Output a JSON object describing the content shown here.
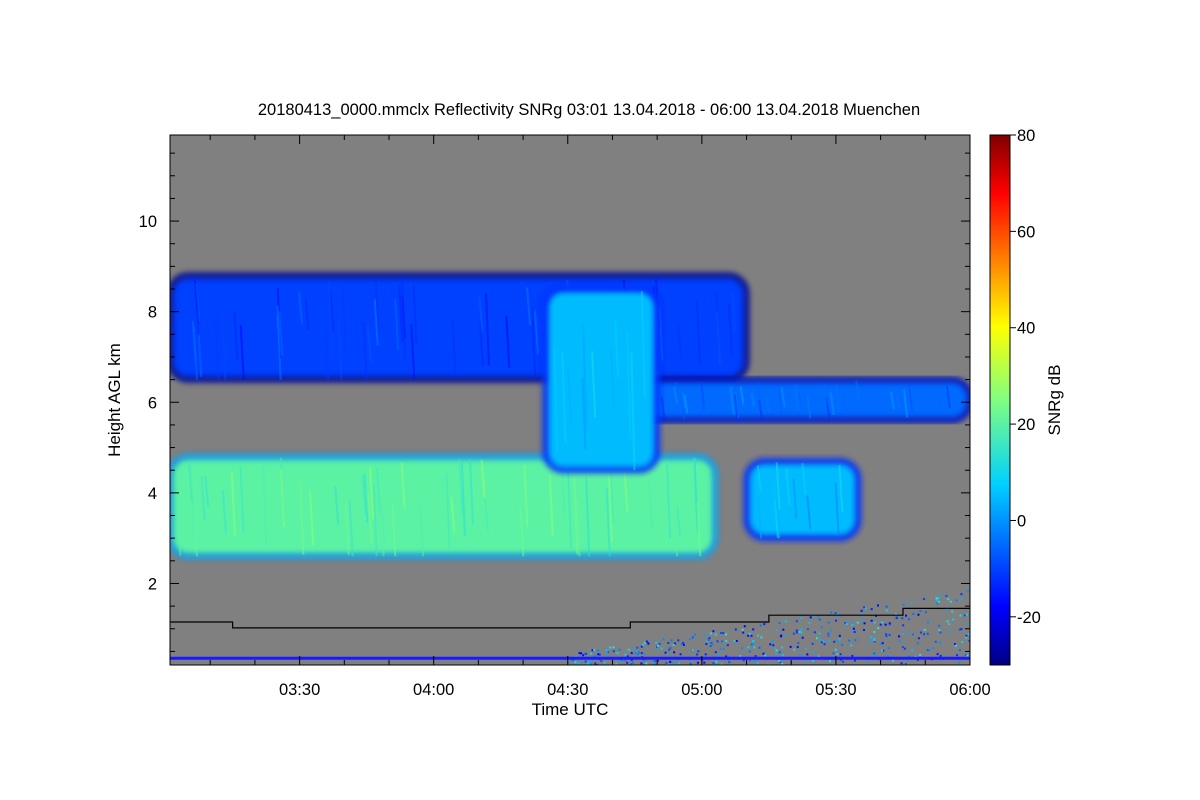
{
  "chart_data": {
    "type": "heatmap",
    "title": "20180413_0000.mmclx Reflectivity SNRg   03:01 13.04.2018 - 06:00 13.04.2018 Muenchen",
    "xlabel": "Time UTC",
    "ylabel": "Height AGL km",
    "colorbar_label": "SNRg dB",
    "xlim": [
      "03:01",
      "06:00"
    ],
    "ylim": [
      0.2,
      11.9
    ],
    "x_ticks": [
      "03:30",
      "04:00",
      "04:30",
      "05:00",
      "05:30",
      "06:00"
    ],
    "x_tick_minutes": [
      210,
      240,
      270,
      300,
      330,
      360
    ],
    "y_ticks": [
      2,
      4,
      6,
      8,
      10
    ],
    "colorbar_range": [
      -30,
      80
    ],
    "colorbar_ticks": [
      -20,
      0,
      20,
      40,
      60,
      80
    ],
    "colormap": "jet",
    "background_color": "#808080",
    "features": [
      {
        "name": "upper cloud layer",
        "time_start": "03:01",
        "time_end": "05:10",
        "height_bottom_km": 6.5,
        "height_top_km": 8.8,
        "snr_db_typical": -10
      },
      {
        "name": "upper cloud extension",
        "time_start": "04:40",
        "time_end": "06:00",
        "height_bottom_km": 5.6,
        "height_top_km": 6.5,
        "snr_db_typical": -5
      },
      {
        "name": "lower cloud layer",
        "time_start": "03:01",
        "time_end": "05:03",
        "height_bottom_km": 2.6,
        "height_top_km": 4.8,
        "snr_db_typical": 20
      },
      {
        "name": "fall streak",
        "time_start": "04:25",
        "time_end": "04:50",
        "height_bottom_km": 4.5,
        "height_top_km": 8.5,
        "snr_db_typical": 5
      },
      {
        "name": "isolated cell",
        "time_start": "05:10",
        "time_end": "05:35",
        "height_bottom_km": 3.0,
        "height_top_km": 4.7,
        "snr_db_typical": 5
      }
    ],
    "step_line": {
      "color": "#000000",
      "points": [
        {
          "time": "03:01",
          "height_km": 1.15
        },
        {
          "time": "03:15",
          "height_km": 1.15
        },
        {
          "time": "03:15",
          "height_km": 1.02
        },
        {
          "time": "04:44",
          "height_km": 1.02
        },
        {
          "time": "04:44",
          "height_km": 1.15
        },
        {
          "time": "05:15",
          "height_km": 1.15
        },
        {
          "time": "05:15",
          "height_km": 1.3
        },
        {
          "time": "05:45",
          "height_km": 1.3
        },
        {
          "time": "05:45",
          "height_km": 1.45
        },
        {
          "time": "06:00",
          "height_km": 1.45
        }
      ]
    },
    "ground_line_height_km": 0.35
  }
}
